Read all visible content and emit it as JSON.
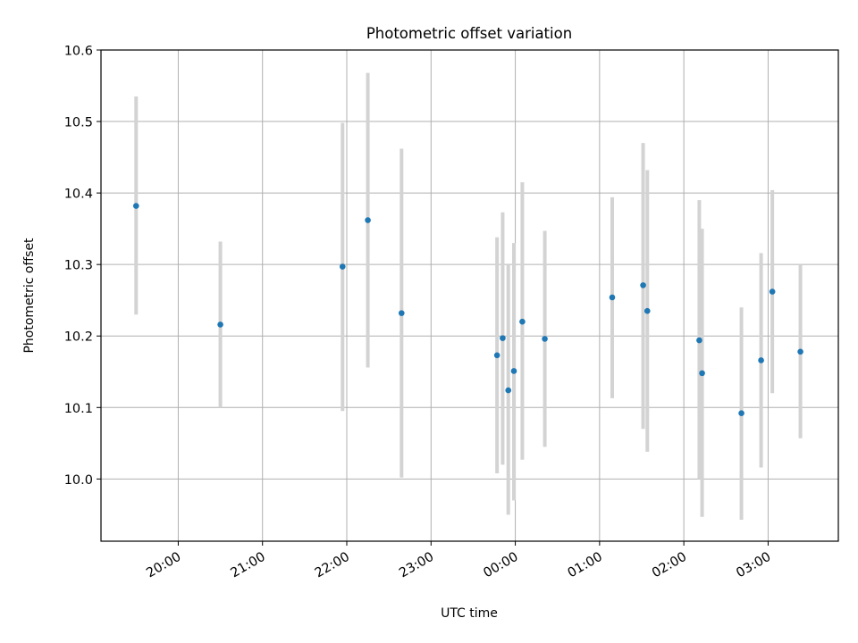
{
  "chart_data": {
    "type": "scatter",
    "title": "Photometric offset variation",
    "xlabel": "UTC time",
    "ylabel": "Photometric offset",
    "grid": true,
    "x_axis_kind": "time",
    "xlim": [
      "19:05",
      "03:50"
    ],
    "ylim": [
      9.913,
      10.6
    ],
    "xticks": [
      "20:00",
      "21:00",
      "22:00",
      "23:00",
      "00:00",
      "01:00",
      "02:00",
      "03:00"
    ],
    "yticks": [
      "10.0",
      "10.1",
      "10.2",
      "10.3",
      "10.4",
      "10.5",
      "10.6"
    ],
    "marker_color": "#1f77b4",
    "errorbar_color": "#d3d3d3",
    "points": [
      {
        "time": "19:30",
        "y": 10.382,
        "low": 10.23,
        "high": 10.535
      },
      {
        "time": "20:30",
        "y": 10.216,
        "low": 10.1,
        "high": 10.332
      },
      {
        "time": "21:57",
        "y": 10.297,
        "low": 10.095,
        "high": 10.498
      },
      {
        "time": "22:15",
        "y": 10.362,
        "low": 10.156,
        "high": 10.568
      },
      {
        "time": "22:39",
        "y": 10.232,
        "low": 10.002,
        "high": 10.462
      },
      {
        "time": "23:47",
        "y": 10.173,
        "low": 10.008,
        "high": 10.338
      },
      {
        "time": "23:51",
        "y": 10.197,
        "low": 10.02,
        "high": 10.373
      },
      {
        "time": "23:55",
        "y": 10.124,
        "low": 9.95,
        "high": 10.3
      },
      {
        "time": "23:59",
        "y": 10.151,
        "low": 9.97,
        "high": 10.33
      },
      {
        "time": "00:05",
        "y": 10.22,
        "low": 10.027,
        "high": 10.415
      },
      {
        "time": "00:21",
        "y": 10.196,
        "low": 10.045,
        "high": 10.347
      },
      {
        "time": "01:09",
        "y": 10.254,
        "low": 10.113,
        "high": 10.394
      },
      {
        "time": "01:31",
        "y": 10.271,
        "low": 10.07,
        "high": 10.47
      },
      {
        "time": "01:34",
        "y": 10.235,
        "low": 10.038,
        "high": 10.432
      },
      {
        "time": "02:11",
        "y": 10.194,
        "low": 10.0,
        "high": 10.39
      },
      {
        "time": "02:13",
        "y": 10.148,
        "low": 9.947,
        "high": 10.35
      },
      {
        "time": "02:41",
        "y": 10.092,
        "low": 9.943,
        "high": 10.24
      },
      {
        "time": "02:55",
        "y": 10.166,
        "low": 10.016,
        "high": 10.316
      },
      {
        "time": "03:03",
        "y": 10.262,
        "low": 10.12,
        "high": 10.404
      },
      {
        "time": "03:23",
        "y": 10.178,
        "low": 10.057,
        "high": 10.3
      }
    ]
  }
}
